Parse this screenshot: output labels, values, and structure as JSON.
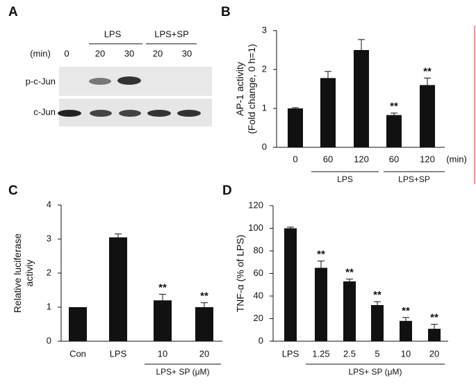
{
  "blot": {
    "label": "A",
    "groups": [
      "LPS",
      "LPS+SP"
    ],
    "time_label": "(min)",
    "times": [
      "0",
      "20",
      "30",
      "20",
      "30"
    ],
    "rows": [
      "p-c-Jun",
      "c-Jun"
    ]
  },
  "chart_data": [
    {
      "type": "bar",
      "label": "B",
      "ylabel": [
        "AP-1 activity",
        "(Fold change, 0 h=1)"
      ],
      "categories": [
        "0",
        "60",
        "120",
        "60",
        "120"
      ],
      "x_unit": "(min)",
      "values": [
        1.0,
        1.78,
        2.5,
        0.83,
        1.6
      ],
      "errors": [
        0.02,
        0.17,
        0.27,
        0.05,
        0.18
      ],
      "stars": [
        null,
        null,
        null,
        "**",
        "**"
      ],
      "groups": [
        "LPS",
        "LPS+SP"
      ],
      "color": "#111111",
      "ylim": [
        0,
        3
      ],
      "yticks": [
        0,
        1,
        2,
        3
      ]
    },
    {
      "type": "bar",
      "label": "C",
      "ylabel": [
        "Relative luciferase",
        "activiy"
      ],
      "categories": [
        "Con",
        "LPS",
        "10",
        "20"
      ],
      "values": [
        1.0,
        3.05,
        1.2,
        1.0
      ],
      "errors": [
        null,
        0.1,
        0.18,
        0.13
      ],
      "stars": [
        null,
        null,
        "**",
        "**"
      ],
      "groups": [
        "LPS+ SP (μM)"
      ],
      "color": "#111111",
      "ylim": [
        0,
        4
      ],
      "yticks": [
        0,
        1,
        2,
        3,
        4
      ]
    },
    {
      "type": "bar",
      "label": "D",
      "ylabel": [
        "TNF-α (% of LPS)"
      ],
      "categories": [
        "LPS",
        "1.25",
        "2.5",
        "5",
        "10",
        "20"
      ],
      "values": [
        100,
        65,
        53,
        32,
        18,
        11
      ],
      "errors": [
        1,
        6,
        2,
        3,
        3,
        4
      ],
      "stars": [
        null,
        "**",
        "**",
        "**",
        "**",
        "**"
      ],
      "groups": [
        "LPS+ SP (μM)"
      ],
      "color": "#111111",
      "ylim": [
        0,
        120
      ],
      "yticks": [
        0,
        20,
        40,
        60,
        80,
        100,
        120
      ]
    }
  ]
}
